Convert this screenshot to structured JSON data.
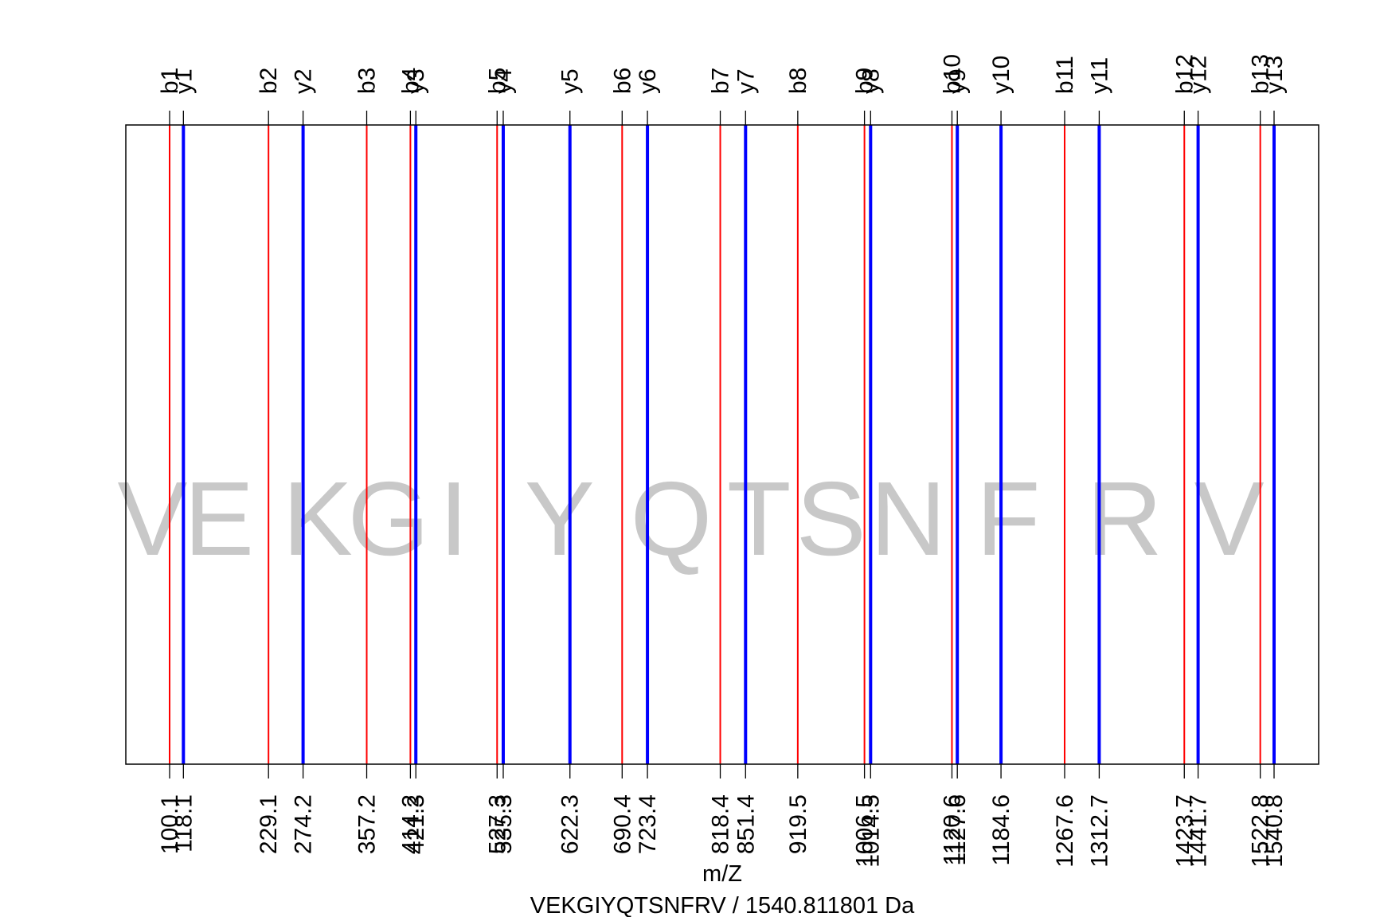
{
  "chart_data": {
    "type": "fragment-ion-spectrum",
    "xlabel": "m/Z",
    "title": "VEKGIYQTSNFRV / 1540.811801 Da",
    "xlim": [
      100.1,
      1540.8
    ],
    "sequence": [
      "V",
      "E",
      "K",
      "G",
      "I",
      "Y",
      "Q",
      "T",
      "S",
      "N",
      "F",
      "R",
      "V"
    ],
    "series": [
      {
        "name": "b",
        "color": "#ff0000",
        "ions": [
          {
            "label": "b1",
            "mz": 100.1,
            "tick": "100.1"
          },
          {
            "label": "b2",
            "mz": 229.1,
            "tick": "229.1"
          },
          {
            "label": "b3",
            "mz": 357.2,
            "tick": "357.2"
          },
          {
            "label": "b4",
            "mz": 414.2,
            "tick": "414.2"
          },
          {
            "label": "b5",
            "mz": 527.3,
            "tick": "527.3"
          },
          {
            "label": "b6",
            "mz": 690.4,
            "tick": "690.4"
          },
          {
            "label": "b7",
            "mz": 818.4,
            "tick": "818.4"
          },
          {
            "label": "b8",
            "mz": 919.5,
            "tick": "919.5"
          },
          {
            "label": "b9",
            "mz": 1006.5,
            "tick": "1006.5"
          },
          {
            "label": "b10",
            "mz": 1120.6,
            "tick": "1120.6"
          },
          {
            "label": "b11",
            "mz": 1267.6,
            "tick": "1267.6"
          },
          {
            "label": "b12",
            "mz": 1423.7,
            "tick": "1423.7"
          },
          {
            "label": "b13",
            "mz": 1522.8,
            "tick": "1522.8"
          }
        ]
      },
      {
        "name": "y",
        "color": "#0000ff",
        "ions": [
          {
            "label": "y1",
            "mz": 118.1,
            "tick": "118.1"
          },
          {
            "label": "y2",
            "mz": 274.2,
            "tick": "274.2"
          },
          {
            "label": "y3",
            "mz": 421.3,
            "tick": "421.3"
          },
          {
            "label": "y4",
            "mz": 535.3,
            "tick": "535.3"
          },
          {
            "label": "y5",
            "mz": 622.3,
            "tick": "622.3"
          },
          {
            "label": "y6",
            "mz": 723.4,
            "tick": "723.4"
          },
          {
            "label": "y7",
            "mz": 851.4,
            "tick": "851.4"
          },
          {
            "label": "y8",
            "mz": 1014.5,
            "tick": "1014.5"
          },
          {
            "label": "y9",
            "mz": 1127.6,
            "tick": "1127.6"
          },
          {
            "label": "y10",
            "mz": 1184.6,
            "tick": "1184.6"
          },
          {
            "label": "y11",
            "mz": 1312.7,
            "tick": "1312.7"
          },
          {
            "label": "y12",
            "mz": 1441.7,
            "tick": "1441.7"
          },
          {
            "label": "y13",
            "mz": 1540.8,
            "tick": "1540.8"
          }
        ]
      }
    ]
  }
}
